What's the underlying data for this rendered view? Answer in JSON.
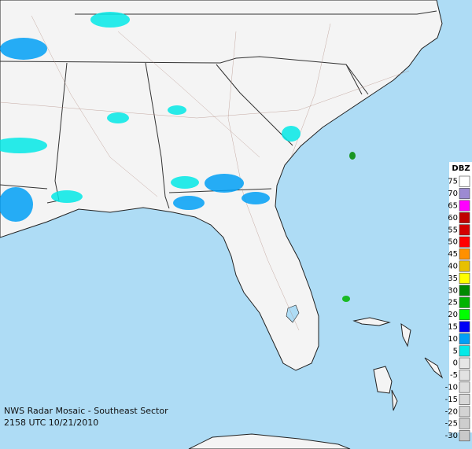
{
  "legend": {
    "title": "DBZ",
    "levels": [
      75,
      70,
      65,
      60,
      55,
      50,
      45,
      40,
      35,
      30,
      25,
      20,
      15,
      10,
      5,
      0,
      -5,
      -10,
      -15,
      -20,
      -25,
      -30
    ],
    "colors": [
      "#ffffff",
      "#9c8ad2",
      "#ff00ff",
      "#c00000",
      "#d40000",
      "#ff0000",
      "#ff9000",
      "#e7c000",
      "#ffff00",
      "#008a00",
      "#00b400",
      "#00ff00",
      "#0000f6",
      "#01a0f6",
      "#04e9e7",
      "#e6e6e6",
      "#e2e2e2",
      "#dddddd",
      "#d8d8d8",
      "#d3d3d3",
      "#cecece",
      "#c9c9c9"
    ]
  },
  "caption": [
    "NWS Radar Mosaic - Southeast Sector",
    "2158 UTC 10/21/2010"
  ]
}
